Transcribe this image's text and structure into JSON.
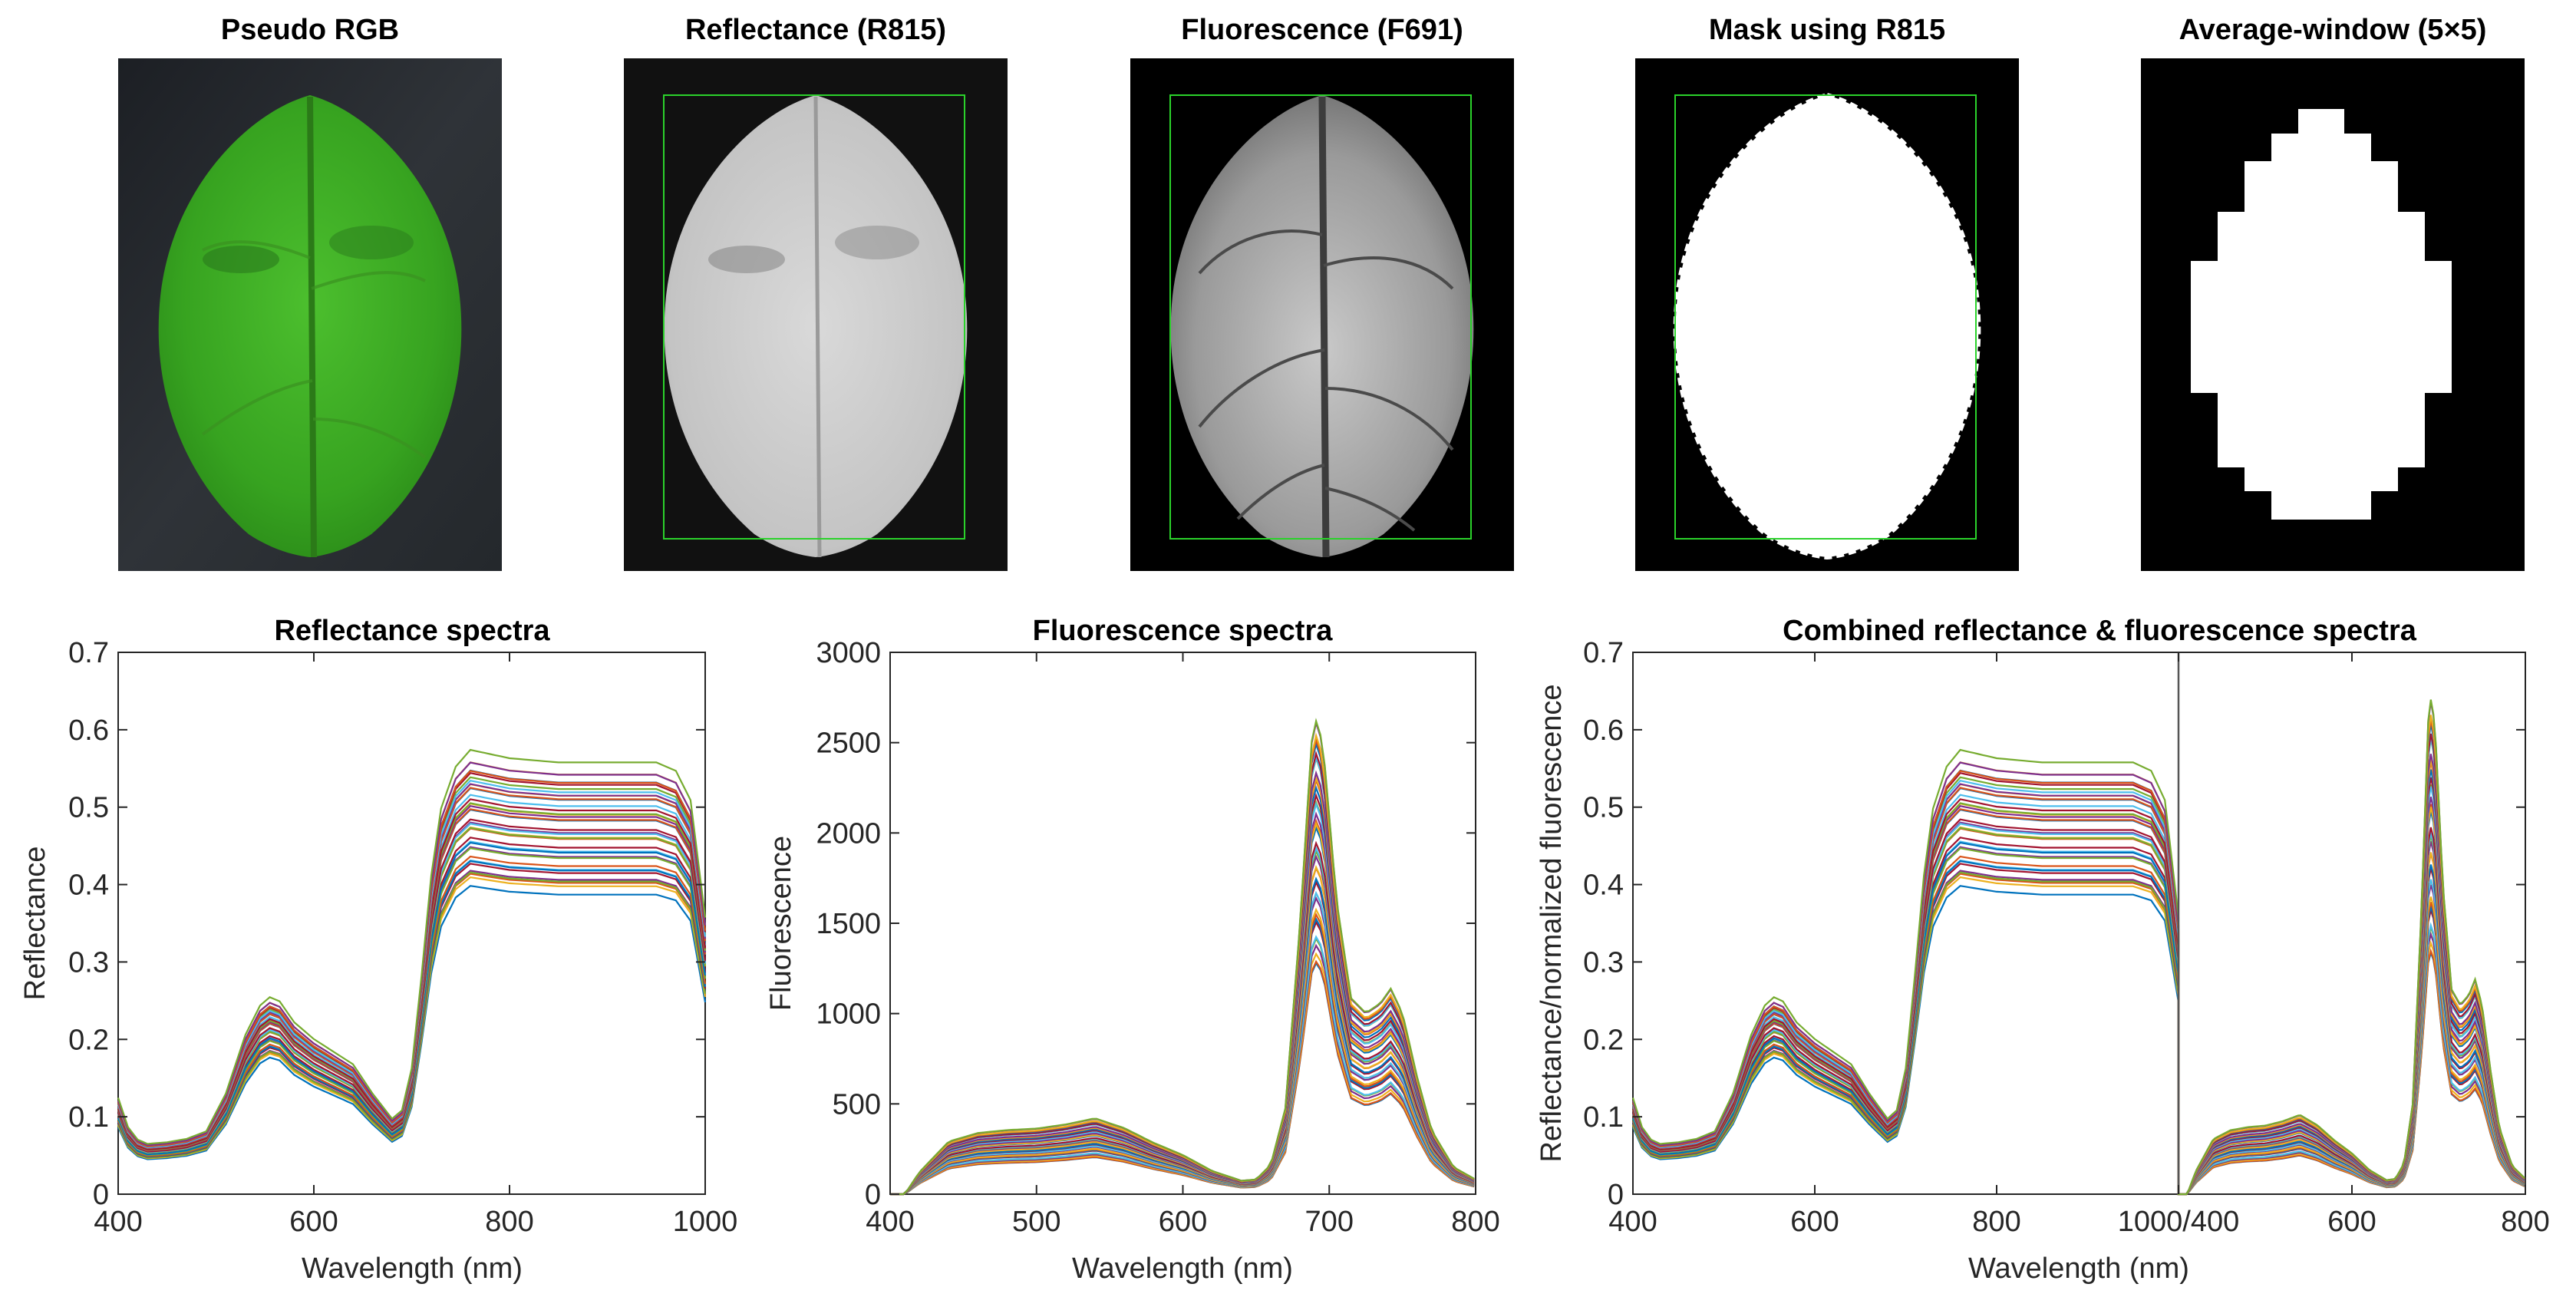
{
  "image_panels": [
    {
      "title": "Pseudo RGB"
    },
    {
      "title": "Reflectance (R815)"
    },
    {
      "title": "Fluorescence (F691)"
    },
    {
      "title": "Mask using R815"
    },
    {
      "title": "Average-window (5×5)"
    }
  ],
  "colors": {
    "roi_box": "#2bd22b",
    "leaf_green": "#3fb52a",
    "series_palette": [
      "#0072BD",
      "#D95319",
      "#EDB120",
      "#7E2F8E",
      "#77AC30",
      "#4DBEEE",
      "#A2142F"
    ]
  },
  "chart_data": [
    {
      "id": "reflectance",
      "type": "line",
      "title": "Reflectance spectra",
      "xlabel": "Wavelength (nm)",
      "ylabel": "Reflectance",
      "xlim": [
        400,
        1000
      ],
      "ylim": [
        0,
        0.7
      ],
      "xticks": [
        "400",
        "600",
        "800",
        "1000"
      ],
      "yticks": [
        "0",
        "0.1",
        "0.2",
        "0.3",
        "0.4",
        "0.5",
        "0.6",
        "0.7"
      ],
      "n_series": 40,
      "series_scale_range": [
        0.76,
        1.07
      ],
      "mean_spectrum": {
        "x": [
          400,
          410,
          420,
          430,
          450,
          470,
          490,
          510,
          530,
          545,
          555,
          565,
          580,
          600,
          620,
          640,
          660,
          680,
          690,
          700,
          710,
          720,
          730,
          745,
          760,
          780,
          800,
          850,
          900,
          950,
          970,
          985,
          1000
        ],
        "y": [
          0.115,
          0.08,
          0.065,
          0.06,
          0.062,
          0.066,
          0.075,
          0.12,
          0.19,
          0.225,
          0.235,
          0.23,
          0.205,
          0.185,
          0.17,
          0.155,
          0.12,
          0.09,
          0.1,
          0.15,
          0.26,
          0.38,
          0.46,
          0.51,
          0.53,
          0.525,
          0.52,
          0.515,
          0.515,
          0.515,
          0.505,
          0.47,
          0.33
        ]
      }
    },
    {
      "id": "fluorescence",
      "type": "line",
      "title": "Fluorescence spectra",
      "xlabel": "Wavelength (nm)",
      "ylabel": "Fluorescence",
      "xlim": [
        400,
        800
      ],
      "ylim": [
        0,
        3000
      ],
      "xticks": [
        "400",
        "500",
        "600",
        "700",
        "800"
      ],
      "yticks": [
        "0",
        "500",
        "1000",
        "1500",
        "2000",
        "2500",
        "3000"
      ],
      "n_series": 40,
      "series_scale_range": [
        0.66,
        1.36
      ],
      "mean_spectrum": {
        "x": [
          400,
          410,
          420,
          440,
          460,
          480,
          500,
          520,
          540,
          560,
          580,
          600,
          620,
          640,
          650,
          660,
          670,
          680,
          688,
          692,
          697,
          705,
          715,
          725,
          735,
          742,
          750,
          760,
          770,
          785,
          800
        ],
        "y": [
          0,
          0,
          90,
          215,
          250,
          262,
          268,
          285,
          310,
          270,
          210,
          160,
          95,
          55,
          60,
          120,
          350,
          1100,
          1850,
          1960,
          1750,
          1200,
          800,
          740,
          780,
          840,
          740,
          480,
          260,
          110,
          60
        ]
      }
    },
    {
      "id": "combined",
      "type": "line",
      "title": "Combined reflectance & fluorescence spectra",
      "xlabel": "Wavelength (nm)",
      "ylabel": "Reflectance/normalized fluorescence",
      "ylim": [
        0,
        0.7
      ],
      "xticks_left": [
        "400",
        "600",
        "800"
      ],
      "xtick_join": "1000/400",
      "xticks_right": [
        "600",
        "800"
      ],
      "yticks": [
        "0",
        "0.1",
        "0.2",
        "0.3",
        "0.4",
        "0.5",
        "0.6",
        "0.7"
      ],
      "left_segment_range": [
        400,
        1000
      ],
      "right_segment_range": [
        400,
        800
      ],
      "fluorescence_normalization_divisor": 4100
    }
  ]
}
